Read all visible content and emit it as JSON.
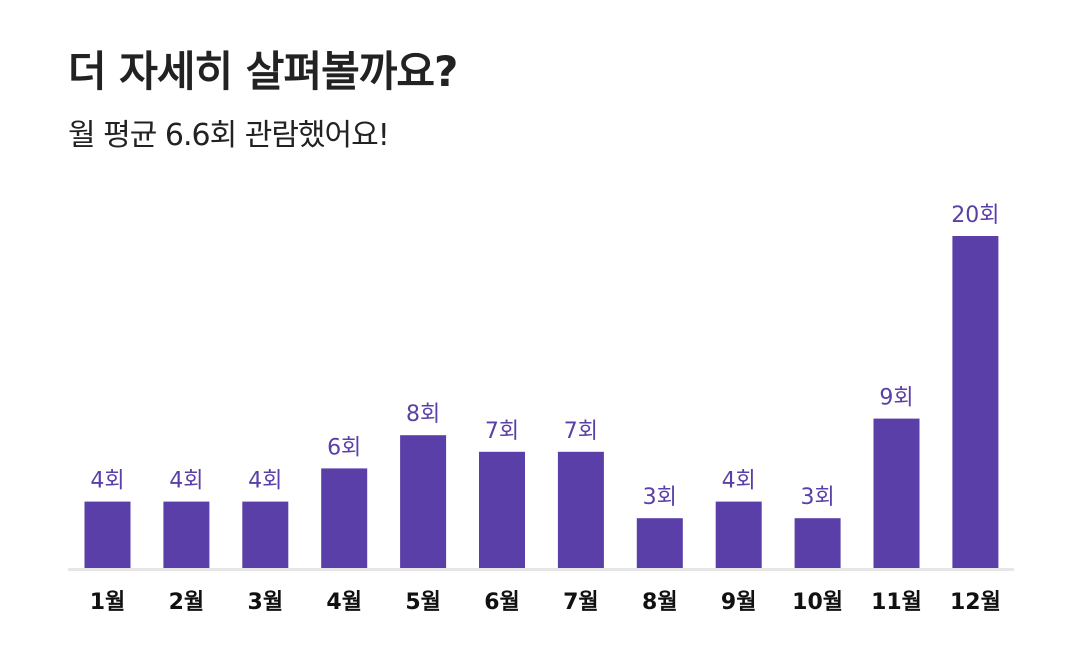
{
  "header": {
    "title": "더 자세히 살펴볼까요?",
    "subtitle": "월 평균 6.6회 관람했어요!"
  },
  "colors": {
    "bar": "#5b3fa8",
    "value_label": "#5b3fa8",
    "tick_label": "#111111",
    "axis": "#e6e6e6"
  },
  "chart_data": {
    "type": "bar",
    "title": "",
    "xlabel": "",
    "ylabel": "",
    "categories": [
      "1월",
      "2월",
      "3월",
      "4월",
      "5월",
      "6월",
      "7월",
      "8월",
      "9월",
      "10월",
      "11월",
      "12월"
    ],
    "values": [
      4,
      4,
      4,
      6,
      8,
      7,
      7,
      3,
      4,
      3,
      9,
      20
    ],
    "value_labels": [
      "4회",
      "4회",
      "4회",
      "6회",
      "8회",
      "7회",
      "7회",
      "3회",
      "4회",
      "3회",
      "9회",
      "20회"
    ],
    "ylim": [
      0,
      20
    ],
    "grid": false,
    "legend": "none"
  }
}
